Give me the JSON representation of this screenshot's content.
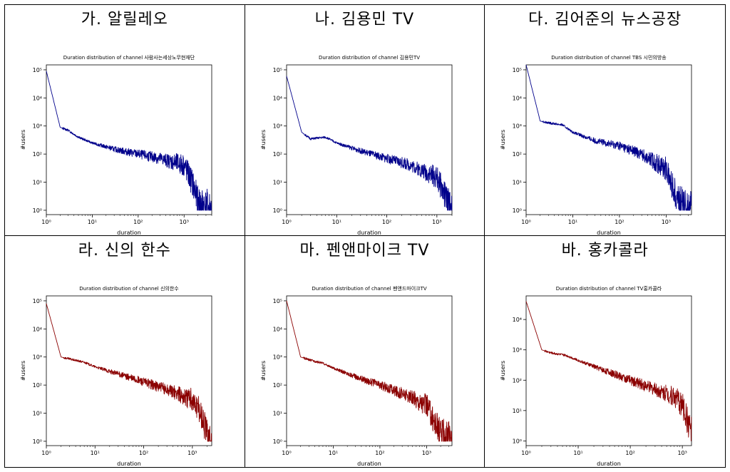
{
  "panels": [
    {
      "label": "가. 알릴레오",
      "plot_title": "Duration distribution of channel 사람사는세상노무현재단"
    },
    {
      "label": "나. 김용민 TV",
      "plot_title": "Duration distribution of channel 김용민TV"
    },
    {
      "label": "다. 김어준의 뉴스공장",
      "plot_title": "Duration distribution of channel TBS 시민의방송"
    },
    {
      "label": "라. 신의 한수",
      "plot_title": "Duration distribution of channel 신의한수"
    },
    {
      "label": "마. 펜앤마이크 TV",
      "plot_title": "Duration distribution of channel 펜앤드마이크TV"
    },
    {
      "label": "바. 홍카콜라",
      "plot_title": "Duration distribution of channel TV홍카콜라"
    }
  ],
  "chart_data": [
    {
      "type": "line",
      "title": "Duration distribution of channel 사람사는세상노무현재단",
      "xlabel": "duration",
      "ylabel": "#users",
      "xscale": "log",
      "yscale": "log",
      "xlim": [
        1,
        4000
      ],
      "ylim": [
        0.7,
        150000
      ],
      "color": "#00008b",
      "series": [
        {
          "x": [
            1,
            2,
            3,
            5,
            10,
            30,
            100,
            300,
            1000,
            1500,
            2000,
            4000
          ],
          "y": [
            90000,
            900,
            700,
            400,
            250,
            150,
            100,
            70,
            40,
            10,
            2,
            1
          ]
        }
      ]
    },
    {
      "type": "line",
      "title": "Duration distribution of channel 김용민TV",
      "xlabel": "duration",
      "ylabel": "#users",
      "xscale": "log",
      "yscale": "log",
      "xlim": [
        1,
        2000
      ],
      "ylim": [
        0.7,
        150000
      ],
      "color": "#00008b",
      "series": [
        {
          "x": [
            1,
            2,
            3,
            6,
            10,
            30,
            100,
            300,
            1000,
            1500,
            2000
          ],
          "y": [
            60000,
            600,
            350,
            400,
            250,
            130,
            70,
            40,
            15,
            3,
            1
          ]
        }
      ]
    },
    {
      "type": "line",
      "title": "Duration distribution of channel TBS 시민의방송",
      "xlabel": "duration",
      "ylabel": "#users",
      "xscale": "log",
      "yscale": "log",
      "xlim": [
        1,
        3500
      ],
      "ylim": [
        0.7,
        150000
      ],
      "color": "#00008b",
      "series": [
        {
          "x": [
            1,
            2,
            3,
            6,
            10,
            30,
            100,
            300,
            1000,
            1500,
            2000,
            3500
          ],
          "y": [
            150000,
            1500,
            1300,
            1100,
            600,
            300,
            200,
            100,
            30,
            5,
            2,
            1
          ]
        }
      ]
    },
    {
      "type": "line",
      "title": "Duration distribution of channel 신의한수",
      "xlabel": "duration",
      "ylabel": "#users",
      "xscale": "log",
      "yscale": "log",
      "xlim": [
        1,
        2500
      ],
      "ylim": [
        0.7,
        150000
      ],
      "color": "#8b0000",
      "series": [
        {
          "x": [
            1,
            2,
            3,
            6,
            10,
            30,
            100,
            300,
            1000,
            1500,
            2000,
            2500
          ],
          "y": [
            80000,
            1000,
            850,
            650,
            450,
            250,
            130,
            70,
            30,
            10,
            2,
            1
          ]
        }
      ]
    },
    {
      "type": "line",
      "title": "Duration distribution of channel 펜앤드마이크TV",
      "xlabel": "duration",
      "ylabel": "#users",
      "xscale": "log",
      "yscale": "log",
      "xlim": [
        1,
        3500
      ],
      "ylim": [
        0.7,
        150000
      ],
      "color": "#8b0000",
      "series": [
        {
          "x": [
            1,
            2,
            3,
            6,
            10,
            30,
            100,
            300,
            1000,
            1500,
            2000,
            3500
          ],
          "y": [
            100000,
            1000,
            800,
            600,
            400,
            200,
            100,
            50,
            20,
            5,
            2,
            1
          ]
        }
      ]
    },
    {
      "type": "line",
      "title": "Duration distribution of channel TV홍카콜라",
      "xlabel": "duration",
      "ylabel": "#users",
      "xscale": "log",
      "yscale": "log",
      "xlim": [
        1,
        1500
      ],
      "ylim": [
        0.7,
        60000
      ],
      "color": "#8b0000",
      "series": [
        {
          "x": [
            1,
            2,
            3,
            6,
            10,
            30,
            100,
            300,
            700,
            1000,
            1500
          ],
          "y": [
            40000,
            1000,
            800,
            650,
            450,
            220,
            100,
            50,
            30,
            15,
            2
          ]
        }
      ]
    }
  ]
}
